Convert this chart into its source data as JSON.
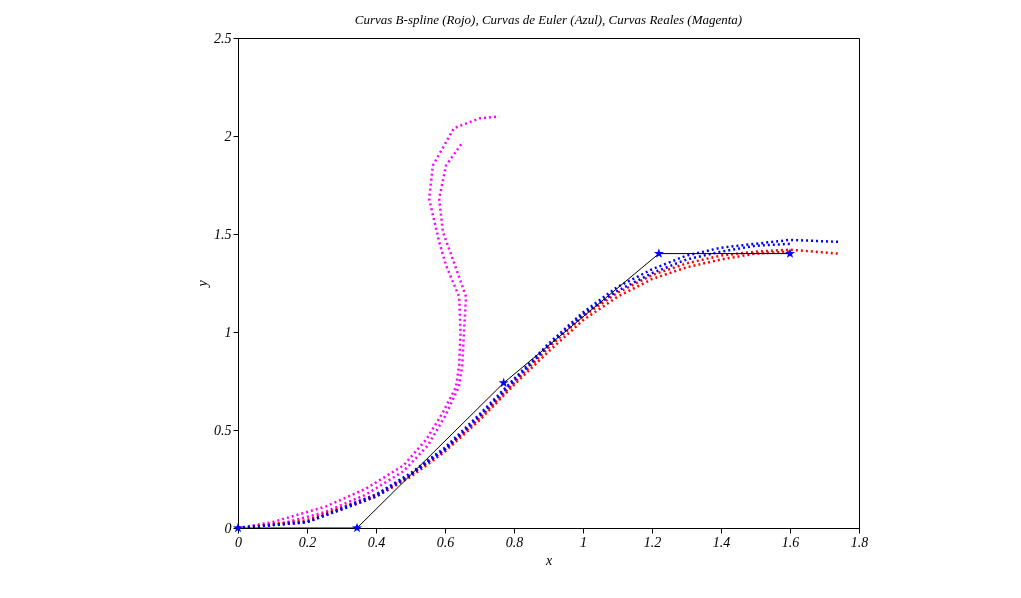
{
  "chart_data": {
    "type": "line",
    "title": "Curvas B-spline (Rojo), Curvas de Euler (Azul), Curvas Reales (Magenta)",
    "xlabel": "x",
    "ylabel": "y",
    "xlim": [
      0,
      1.8
    ],
    "xticks": [
      0,
      0.2,
      0.4,
      0.6,
      0.8,
      1,
      1.2,
      1.4,
      1.6,
      1.8
    ],
    "ylim": [
      0,
      2.5
    ],
    "yticks": [
      0,
      0.5,
      1,
      1.5,
      2,
      2.5
    ],
    "grid": false,
    "series": [
      {
        "color": "#ff00ff",
        "line_style": "dotted",
        "marker": "none",
        "x": [
          0,
          0.1,
          0.255,
          0.37,
          0.48,
          0.545,
          0.594,
          0.632,
          0.641,
          0.645,
          0.641,
          0.603,
          0.583,
          0.554,
          0.565,
          0.626,
          0.7,
          0.757
        ],
        "values": [
          0,
          0.03,
          0.11,
          0.2,
          0.32,
          0.45,
          0.59,
          0.72,
          0.83,
          1.0,
          1.18,
          1.34,
          1.46,
          1.68,
          1.85,
          2.04,
          2.09,
          2.1
        ]
      },
      {
        "color": "#ff00ff",
        "line_style": "dotted",
        "marker": "none",
        "x": [
          0,
          0.12,
          0.25,
          0.37,
          0.48,
          0.55,
          0.6,
          0.64,
          0.65,
          0.655,
          0.661,
          0.623,
          0.594,
          0.583,
          0.603,
          0.652
        ],
        "values": [
          0,
          0.02,
          0.08,
          0.17,
          0.29,
          0.42,
          0.57,
          0.72,
          0.83,
          1.0,
          1.18,
          1.37,
          1.51,
          1.68,
          1.85,
          1.97
        ]
      },
      {
        "color": "#ff0000",
        "line_style": "dotted",
        "marker": "none",
        "x": [
          0,
          0.2,
          0.4,
          0.5,
          0.6,
          0.7,
          0.8,
          0.9,
          1.0,
          1.1,
          1.2,
          1.3,
          1.4,
          1.5,
          1.6,
          1.74
        ],
        "values": [
          0,
          0.04,
          0.17,
          0.27,
          0.4,
          0.56,
          0.74,
          0.92,
          1.08,
          1.2,
          1.29,
          1.35,
          1.39,
          1.41,
          1.42,
          1.4
        ]
      },
      {
        "color": "#ff0000",
        "line_style": "dotted",
        "marker": "none",
        "x": [
          0,
          0.2,
          0.4,
          0.5,
          0.6,
          0.7,
          0.8,
          0.9,
          1.0,
          1.1,
          1.2,
          1.3,
          1.4,
          1.5,
          1.6
        ],
        "values": [
          0,
          0.03,
          0.16,
          0.26,
          0.39,
          0.55,
          0.73,
          0.9,
          1.06,
          1.18,
          1.27,
          1.33,
          1.37,
          1.4,
          1.41
        ]
      },
      {
        "color": "#0000ff",
        "line_style": "dotted",
        "marker": "none",
        "x": [
          0,
          0.2,
          0.4,
          0.5,
          0.6,
          0.7,
          0.8,
          0.9,
          1.0,
          1.1,
          1.2,
          1.3,
          1.4,
          1.5,
          1.6,
          1.74
        ],
        "values": [
          0,
          0.03,
          0.17,
          0.28,
          0.41,
          0.58,
          0.76,
          0.94,
          1.1,
          1.23,
          1.32,
          1.39,
          1.43,
          1.45,
          1.47,
          1.46
        ]
      },
      {
        "color": "#0000ff",
        "line_style": "dotted",
        "marker": "none",
        "x": [
          0,
          0.2,
          0.4,
          0.5,
          0.6,
          0.7,
          0.8,
          0.9,
          1.0,
          1.1,
          1.2,
          1.3,
          1.4,
          1.5,
          1.6
        ],
        "values": [
          0,
          0.03,
          0.16,
          0.27,
          0.4,
          0.57,
          0.75,
          0.93,
          1.09,
          1.21,
          1.3,
          1.37,
          1.41,
          1.44,
          1.45
        ]
      },
      {
        "color": "#000000",
        "line_style": "solid",
        "marker": "none",
        "x": [
          0,
          0.345,
          0.77,
          1.22,
          1.6
        ],
        "values": [
          0,
          0,
          0.74,
          1.4,
          1.4
        ]
      },
      {
        "type": "scatter",
        "color": "#0000ff",
        "marker": "star",
        "x": [
          0,
          0.345,
          0.77,
          1.22,
          1.6
        ],
        "values": [
          0,
          0,
          0.74,
          1.4,
          1.4
        ]
      }
    ]
  }
}
